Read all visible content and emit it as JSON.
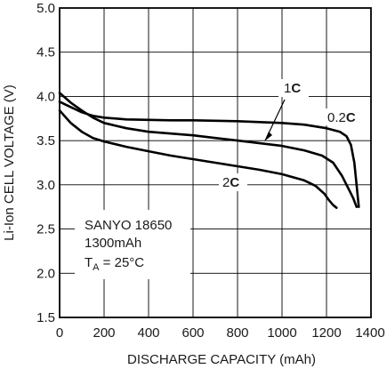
{
  "chart_data": {
    "type": "line",
    "xlabel": "DISCHARGE CAPACITY (mAh)",
    "ylabel": "Li-Ion CELL VOLTAGE (V)",
    "xlim": [
      0,
      1400
    ],
    "ylim": [
      1.5,
      5.0
    ],
    "xticks": [
      0,
      200,
      400,
      600,
      800,
      1000,
      1200,
      1400
    ],
    "xtick_labels": [
      "0",
      "200",
      "400",
      "600",
      "800",
      "1000",
      "1200",
      "1400"
    ],
    "yticks": [
      1.5,
      2.0,
      2.5,
      3.0,
      3.5,
      4.0,
      4.5,
      5.0
    ],
    "ytick_labels": [
      "1.5",
      "2.0",
      "2.5",
      "3.0",
      "3.5",
      "4.0",
      "4.5",
      "5.0"
    ],
    "grid": true,
    "annotation": {
      "line1": "SANYO 18650",
      "line2": "1300mAh",
      "line3_main": "T",
      "line3_sub": "A",
      "line3_rest": " = 25°C"
    },
    "series": [
      {
        "name": "0.2C",
        "label_prefix": "0.2",
        "label_suffix": "C",
        "color": "#000000",
        "x": [
          0,
          50,
          100,
          150,
          200,
          300,
          400,
          500,
          600,
          700,
          800,
          900,
          1000,
          1100,
          1200,
          1260,
          1290,
          1310,
          1325,
          1335,
          1345
        ],
        "y": [
          3.94,
          3.88,
          3.82,
          3.78,
          3.76,
          3.74,
          3.735,
          3.73,
          3.73,
          3.725,
          3.72,
          3.71,
          3.7,
          3.68,
          3.64,
          3.6,
          3.55,
          3.45,
          3.25,
          3.0,
          2.75
        ]
      },
      {
        "name": "1C",
        "label_prefix": "1",
        "label_suffix": "C",
        "color": "#000000",
        "x": [
          0,
          50,
          100,
          150,
          200,
          300,
          400,
          500,
          600,
          700,
          800,
          900,
          1000,
          1100,
          1180,
          1230,
          1270,
          1300,
          1320,
          1335
        ],
        "y": [
          4.04,
          3.93,
          3.84,
          3.76,
          3.7,
          3.64,
          3.6,
          3.58,
          3.56,
          3.53,
          3.5,
          3.47,
          3.44,
          3.39,
          3.33,
          3.25,
          3.1,
          2.95,
          2.85,
          2.75
        ]
      },
      {
        "name": "2C",
        "label_prefix": "2",
        "label_suffix": "C",
        "color": "#000000",
        "x": [
          0,
          50,
          100,
          150,
          200,
          300,
          400,
          500,
          600,
          700,
          800,
          900,
          1000,
          1100,
          1150,
          1190,
          1210,
          1230,
          1245
        ],
        "y": [
          3.84,
          3.7,
          3.6,
          3.53,
          3.49,
          3.43,
          3.38,
          3.33,
          3.29,
          3.25,
          3.21,
          3.17,
          3.12,
          3.05,
          2.99,
          2.9,
          2.83,
          2.77,
          2.74
        ]
      }
    ]
  },
  "colors": {
    "background": "#ffffff",
    "frame": "#000000",
    "grid": "#000000",
    "text": "#1a1a1a"
  }
}
